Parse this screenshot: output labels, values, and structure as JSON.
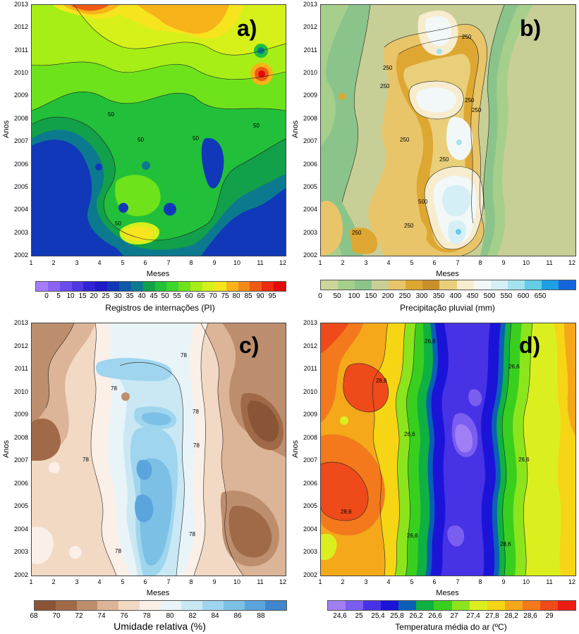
{
  "x_axis_ticks": [
    "1",
    "2",
    "3",
    "4",
    "5",
    "6",
    "7",
    "8",
    "9",
    "10",
    "11",
    "12"
  ],
  "y_axis_ticks": [
    "2013",
    "2012",
    "2011",
    "2010",
    "2009",
    "2008",
    "2007",
    "2006",
    "2005",
    "2004",
    "2003",
    "2002"
  ],
  "x_axis_label": "Meses",
  "y_axis_label": "Anos",
  "chart_data": [
    {
      "type": "heatmap",
      "panel_letter": "a)",
      "colorbar_title": "Registros de internações (PI)",
      "colorbar_ticks": [
        "0",
        "5",
        "10",
        "15",
        "20",
        "25",
        "30",
        "35",
        "40",
        "45",
        "50",
        "55",
        "60",
        "65",
        "70",
        "75",
        "80",
        "85",
        "90",
        "95"
      ],
      "colors": [
        "#a77cff",
        "#8a64f5",
        "#6a4cec",
        "#4e3ae0",
        "#3024d6",
        "#1d1ac6",
        "#1038b8",
        "#0e5aa6",
        "#0b7a8e",
        "#12a04a",
        "#22c03a",
        "#3cd62c",
        "#6ee31c",
        "#a6ee16",
        "#d6f01a",
        "#f6e41e",
        "#f7b319",
        "#f38a17",
        "#ef5a14",
        "#eb2a10",
        "#e30b0b"
      ],
      "contour_labels": [
        "50",
        "50",
        "50",
        "50",
        "50"
      ],
      "xlim": [
        1,
        12
      ],
      "ylim": [
        2002,
        2013
      ]
    },
    {
      "type": "heatmap",
      "panel_letter": "b)",
      "colorbar_title": "Precipitação pluvial (mm)",
      "colorbar_ticks": [
        "0",
        "50",
        "100",
        "150",
        "200",
        "250",
        "300",
        "350",
        "400",
        "450",
        "500",
        "550",
        "600",
        "650"
      ],
      "colors": [
        "#cfd59a",
        "#a6cf8c",
        "#8bc48a",
        "#c8cf96",
        "#e9c56a",
        "#dea731",
        "#c9902a",
        "#e9cf7a",
        "#f7eccd",
        "#f2f8f8",
        "#d6eff7",
        "#a2e3ef",
        "#63cde6",
        "#1e9fe3",
        "#1566de"
      ],
      "contour_labels": [
        "250",
        "250",
        "250",
        "250",
        "250",
        "250",
        "250",
        "500",
        "250",
        "250"
      ],
      "xlim": [
        1,
        12
      ],
      "ylim": [
        2002,
        2013
      ]
    },
    {
      "type": "heatmap",
      "panel_letter": "c)",
      "colorbar_title": "Umidade relativa (%)",
      "colorbar_ticks": [
        "68",
        "70",
        "72",
        "74",
        "76",
        "78",
        "80",
        "82",
        "84",
        "86",
        "88"
      ],
      "colors": [
        "#8a5536",
        "#a06a48",
        "#bd8e6d",
        "#dcb598",
        "#f2d9c4",
        "#faf0e8",
        "#e9f4f8",
        "#c9e8f3",
        "#9fd5ee",
        "#7cc0e6",
        "#5aa5dc",
        "#3f86cd"
      ],
      "contour_labels": [
        "78",
        "78",
        "78",
        "78",
        "78",
        "78",
        "78"
      ],
      "xlim": [
        1,
        12
      ],
      "ylim": [
        2002,
        2013
      ]
    },
    {
      "type": "heatmap",
      "panel_letter": "d)",
      "colorbar_title": "Temperatura média do ar (ºC)",
      "colorbar_ticks": [
        "24,6",
        "25",
        "25,4",
        "25,8",
        "26,2",
        "26,6",
        "27",
        "27,4",
        "27,8",
        "28,2",
        "28,6",
        "29"
      ],
      "colors": [
        "#a07ef4",
        "#7a5ef0",
        "#4732e6",
        "#1b14d8",
        "#0a5fb6",
        "#0fb142",
        "#39cf1e",
        "#8ce51c",
        "#dbef1f",
        "#f5d514",
        "#f4a81a",
        "#f3791c",
        "#ef4a1a",
        "#eb1d12"
      ],
      "contour_labels": [
        "28,6",
        "26,6",
        "26,6",
        "26,6",
        "26,6",
        "28,6",
        "26,6",
        "28,6"
      ],
      "xlim": [
        1,
        12
      ],
      "ylim": [
        2002,
        2013
      ]
    }
  ]
}
